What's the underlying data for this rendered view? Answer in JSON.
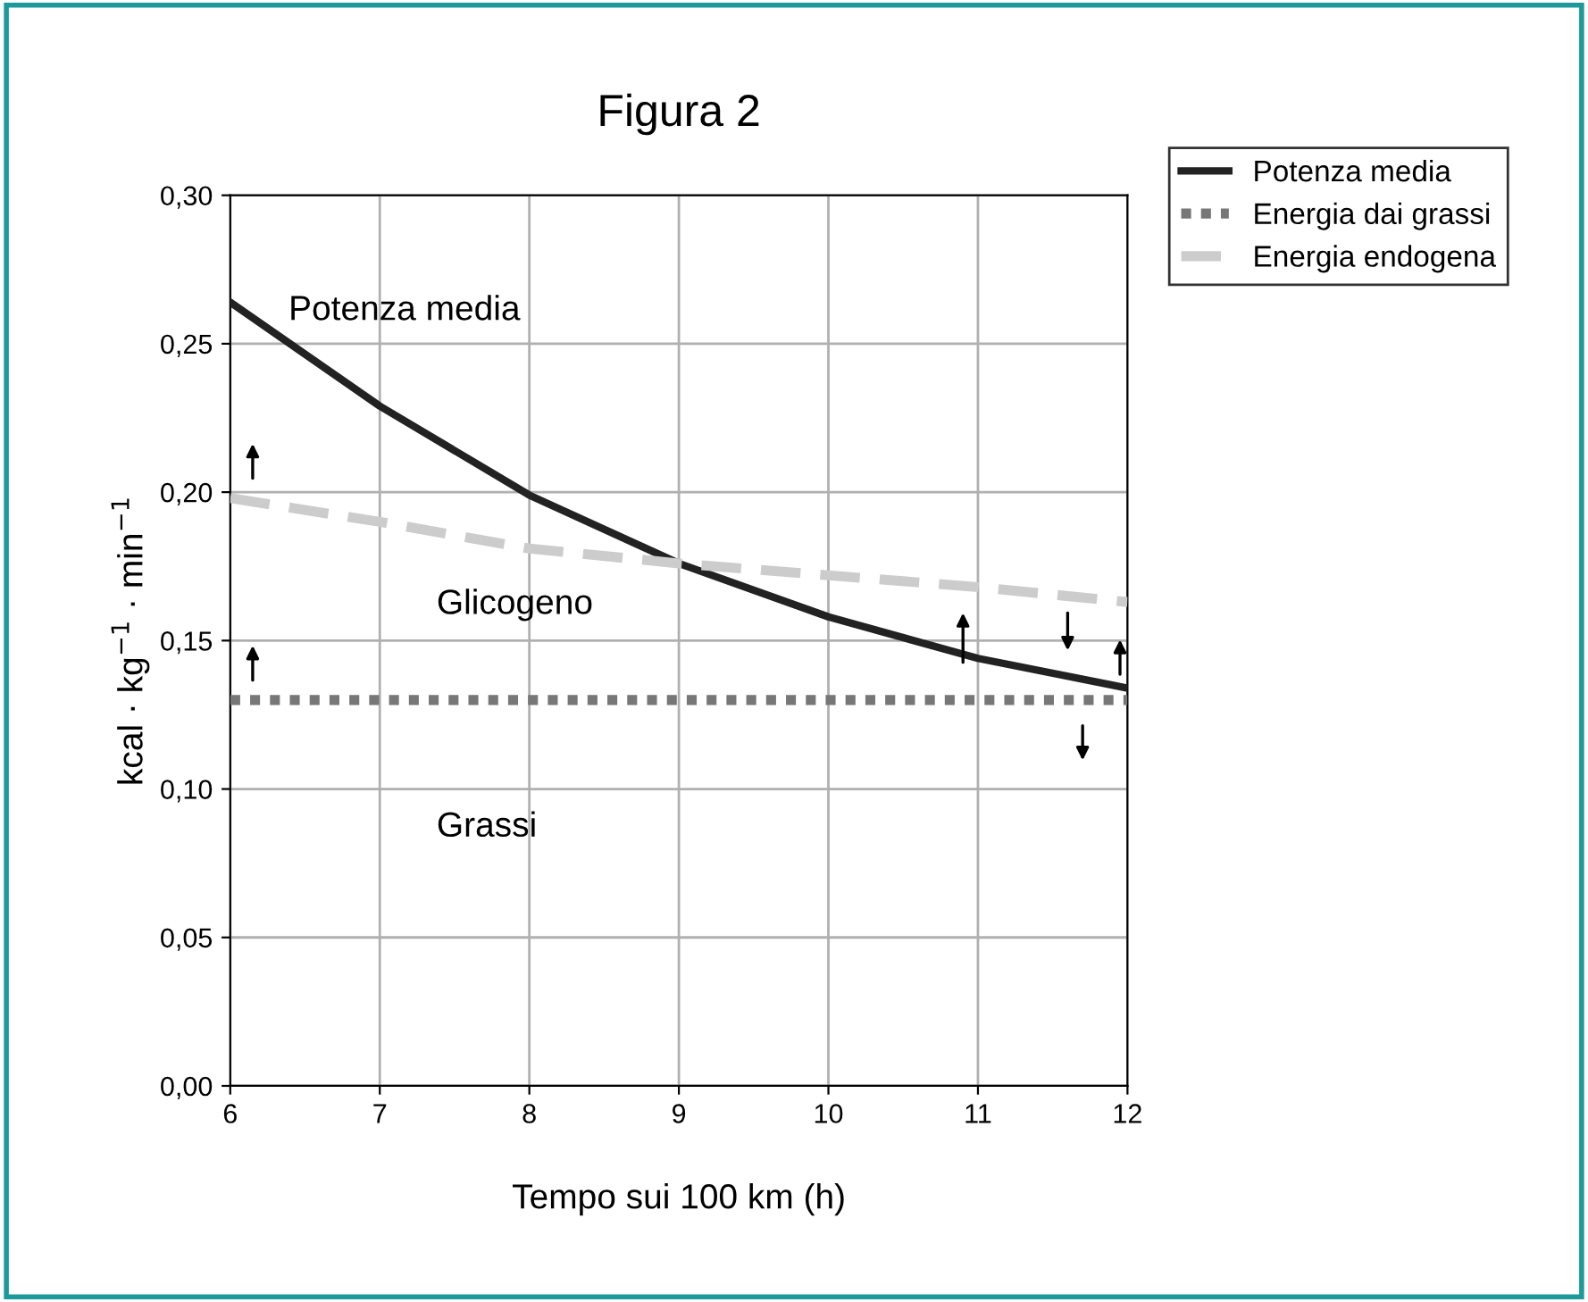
{
  "chart_data": {
    "type": "line",
    "title": "Figura 2",
    "xlabel": "Tempo sui 100 km (h)",
    "ylabel": "kcal · kg$^{−1}$ · min$^{−1}$",
    "x": [
      6,
      7,
      8,
      9,
      10,
      11,
      12
    ],
    "series": [
      {
        "name": "Potenza media",
        "color": "#222222",
        "line_style": "solid",
        "values": [
          0.264,
          0.229,
          0.199,
          0.176,
          0.158,
          0.144,
          0.134
        ]
      },
      {
        "name": "Energia dai grassi",
        "color": "#777777",
        "line_style": "dotted",
        "values": [
          0.13,
          0.13,
          0.13,
          0.13,
          0.13,
          0.13,
          0.13
        ]
      },
      {
        "name": "Energia endogena",
        "color": "#cccccc",
        "line_style": "dashed",
        "values": [
          0.198,
          0.19,
          0.181,
          0.176,
          0.172,
          0.168,
          0.163
        ]
      }
    ],
    "xlim": [
      6,
      12
    ],
    "ylim": [
      0,
      0.3
    ],
    "xticks": [
      6,
      7,
      8,
      9,
      10,
      11,
      12
    ],
    "yticks": [
      {
        "value": 0,
        "label": "0,00"
      },
      {
        "value": 0.05,
        "label": "0,05"
      },
      {
        "value": 0.1,
        "label": "0,10"
      },
      {
        "value": 0.15,
        "label": "0,15"
      },
      {
        "value": 0.2,
        "label": "0,20"
      },
      {
        "value": 0.25,
        "label": "0,25"
      },
      {
        "value": 0.3,
        "label": "0,30"
      }
    ],
    "grid": true,
    "legend": "top right",
    "marker": "none",
    "annotations": [
      "Potenza media",
      "Glicogeno",
      "Grassi"
    ]
  }
}
